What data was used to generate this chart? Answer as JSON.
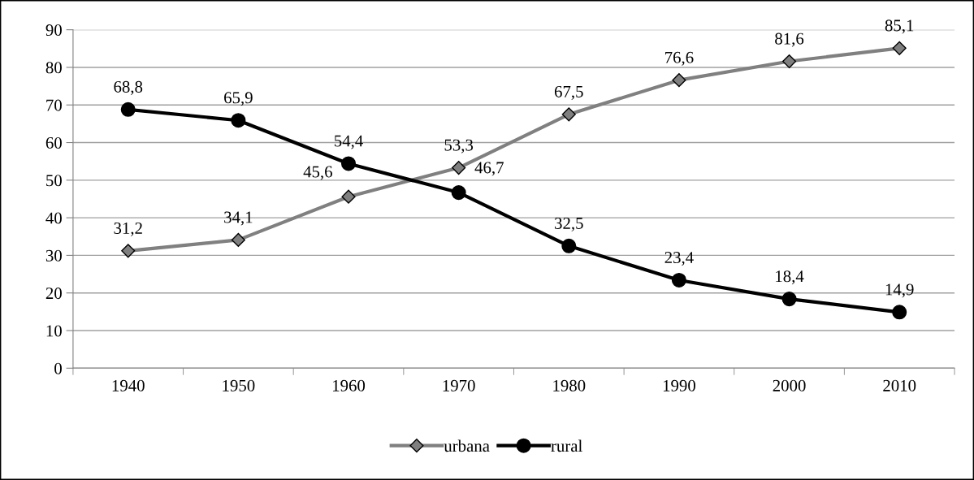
{
  "chart_data": {
    "type": "line",
    "categories": [
      "1940",
      "1950",
      "1960",
      "1970",
      "1980",
      "1990",
      "2000",
      "2010"
    ],
    "series": [
      {
        "name": "urbana",
        "color": "#808080",
        "marker": "diamond",
        "values": [
          31.2,
          34.1,
          45.6,
          53.3,
          67.5,
          76.6,
          81.6,
          85.1
        ],
        "value_labels": [
          "31,2",
          "34,1",
          "45,6",
          "53,3",
          "67,5",
          "76,6",
          "81,6",
          "85,1"
        ]
      },
      {
        "name": "rural",
        "color": "#000000",
        "marker": "circle",
        "values": [
          68.8,
          65.9,
          54.4,
          46.7,
          32.5,
          23.4,
          18.4,
          14.9
        ],
        "value_labels": [
          "68,8",
          "65,9",
          "54,4",
          "46,7",
          "32,5",
          "23,4",
          "18,4",
          "14,9"
        ]
      }
    ],
    "ylim": [
      0,
      90
    ],
    "yticks": [
      0,
      10,
      20,
      30,
      40,
      50,
      60,
      70,
      80,
      90
    ],
    "grid": "y",
    "legend": "bottom",
    "line_style": "solid"
  }
}
